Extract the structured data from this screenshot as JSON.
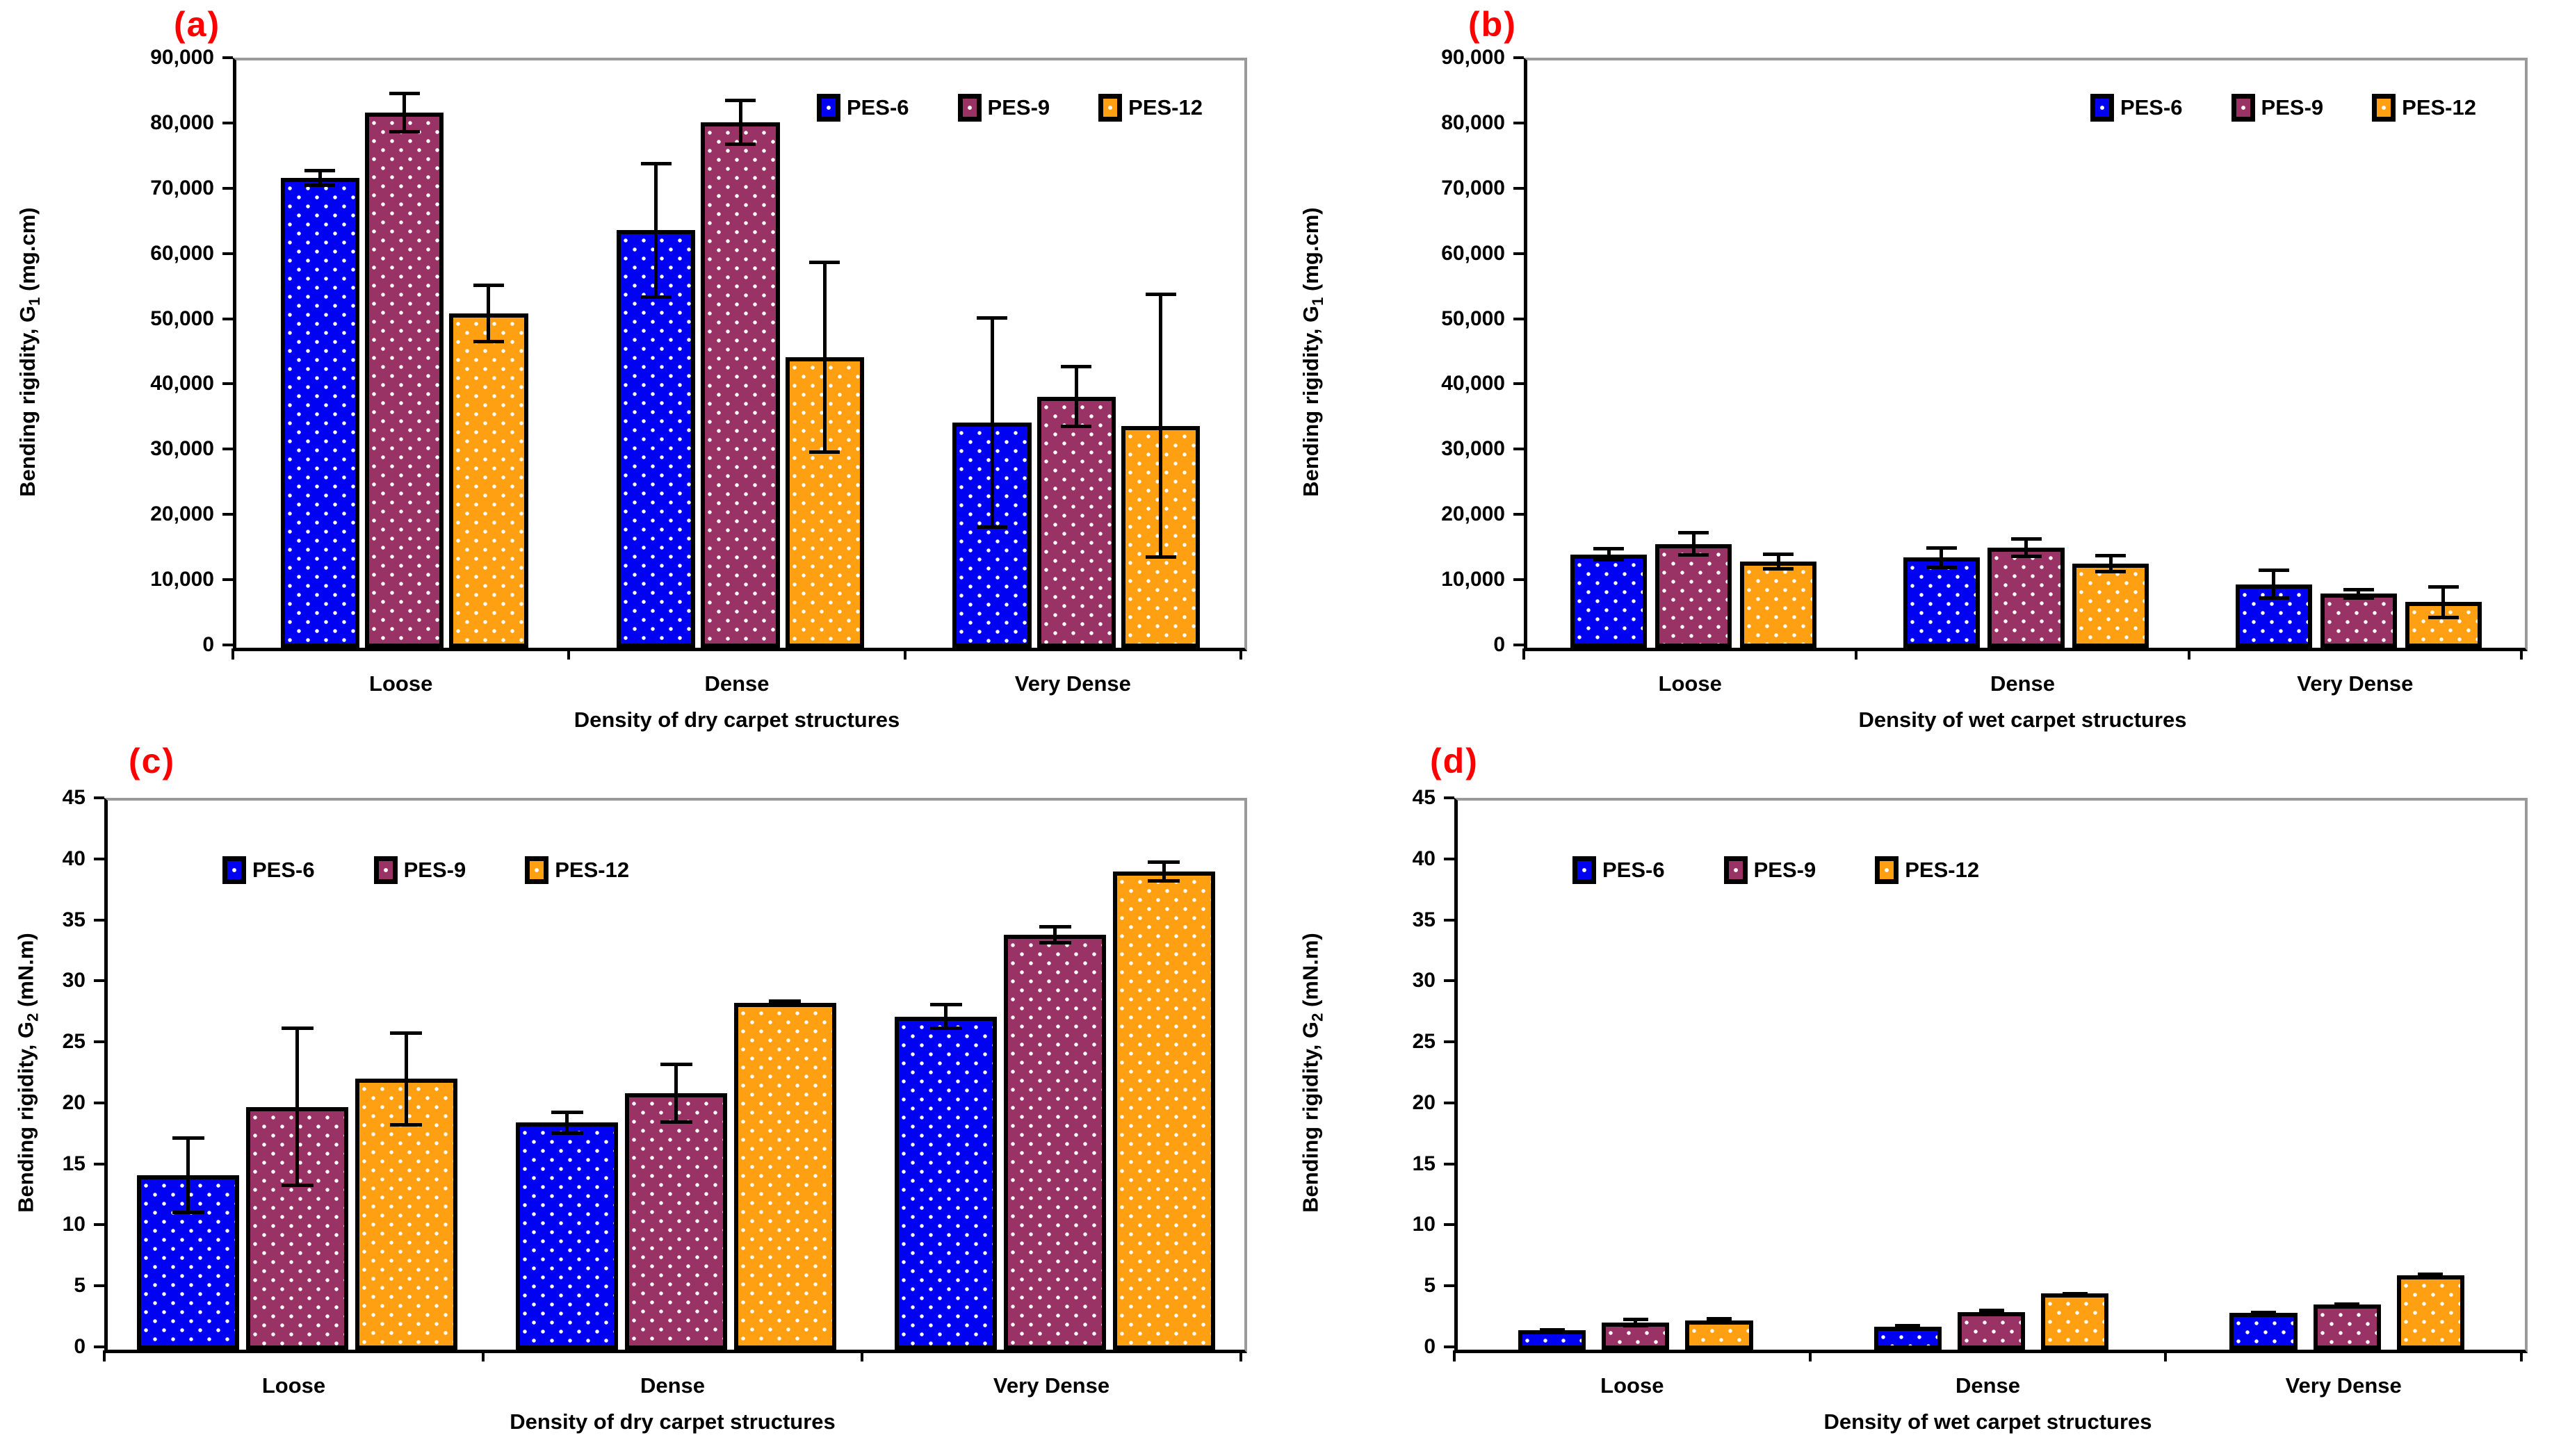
{
  "chart_data": [
    {
      "type": "bar",
      "panel_label": "(a)",
      "title": "",
      "ylabel": "Bending rigidity, G1 (mg.cm)",
      "ylabel_parts": {
        "pre": "Bending rigidity, G",
        "sub": "1",
        "post": " (mg.cm)"
      },
      "xlabel": "Density of dry carpet structures",
      "ylim": [
        0,
        90000
      ],
      "ytick_step": 10000,
      "ytick_labels": [
        "0",
        "10,000",
        "20,000",
        "30,000",
        "40,000",
        "50,000",
        "60,000",
        "70,000",
        "80,000",
        "90,000"
      ],
      "categories": [
        "Loose",
        "Dense",
        "Very Dense"
      ],
      "legend_position": "top-right",
      "grid": false,
      "series": [
        {
          "name": "PES-6",
          "color": "#0202F2",
          "values": [
            72000,
            64000,
            34500
          ],
          "errors": [
            1400,
            10500,
            16300
          ]
        },
        {
          "name": "PES-9",
          "color": "#993366",
          "values": [
            82000,
            80500,
            38500
          ],
          "errors": [
            3200,
            3600,
            4800
          ]
        },
        {
          "name": "PES-12",
          "color": "#FFA013",
          "values": [
            51200,
            44500,
            34000
          ],
          "errors": [
            4600,
            14800,
            20400
          ]
        }
      ]
    },
    {
      "type": "bar",
      "panel_label": "(b)",
      "title": "",
      "ylabel": "Bending rigidity, G1 (mg.cm)",
      "ylabel_parts": {
        "pre": "Bending rigidity, G",
        "sub": "1",
        "post": " (mg.cm)"
      },
      "xlabel": "Density of wet carpet structures",
      "ylim": [
        0,
        90000
      ],
      "ytick_step": 10000,
      "ytick_labels": [
        "0",
        "10,000",
        "20,000",
        "30,000",
        "40,000",
        "50,000",
        "60,000",
        "70,000",
        "80,000",
        "90,000"
      ],
      "categories": [
        "Loose",
        "Dense",
        "Very Dense"
      ],
      "legend_position": "top-right",
      "grid": false,
      "series": [
        {
          "name": "PES-6",
          "color": "#0202F2",
          "values": [
            14300,
            13800,
            9700
          ],
          "errors": [
            1100,
            1800,
            2400
          ]
        },
        {
          "name": "PES-9",
          "color": "#993366",
          "values": [
            15900,
            15300,
            8300
          ],
          "errors": [
            2000,
            1600,
            900
          ]
        },
        {
          "name": "PES-12",
          "color": "#FFA013",
          "values": [
            13200,
            12900,
            7000
          ],
          "errors": [
            1400,
            1500,
            2600
          ]
        }
      ]
    },
    {
      "type": "bar",
      "panel_label": "(c)",
      "title": "",
      "ylabel": "Bending rigidity, G2 (mN.m)",
      "ylabel_parts": {
        "pre": "Bending rigidity, G",
        "sub": "2",
        "post": " (mN.m)"
      },
      "xlabel": "Density of dry carpet structures",
      "ylim": [
        0,
        45
      ],
      "ytick_step": 5,
      "ytick_labels": [
        "0",
        "5",
        "10",
        "15",
        "20",
        "25",
        "30",
        "35",
        "40",
        "45"
      ],
      "categories": [
        "Loose",
        "Dense",
        "Very Dense"
      ],
      "legend_position": "top-left",
      "grid": false,
      "series": [
        {
          "name": "PES-6",
          "color": "#0202F2",
          "values": [
            14.3,
            18.6,
            27.3
          ],
          "errors": [
            3.2,
            1.0,
            1.1
          ]
        },
        {
          "name": "PES-9",
          "color": "#993366",
          "values": [
            19.9,
            21.0,
            34.0
          ],
          "errors": [
            6.6,
            2.5,
            0.8
          ]
        },
        {
          "name": "PES-12",
          "color": "#FFA013",
          "values": [
            22.2,
            28.4,
            39.2
          ],
          "errors": [
            3.9,
            0.3,
            0.9
          ]
        }
      ]
    },
    {
      "type": "bar",
      "panel_label": "(d)",
      "title": "",
      "ylabel": "Bending rigidity, G2 (mN.m)",
      "ylabel_parts": {
        "pre": "Bending rigidity, G",
        "sub": "2",
        "post": " (mN.m)"
      },
      "xlabel": "Density of wet carpet structures",
      "ylim": [
        0,
        45
      ],
      "ytick_step": 5,
      "ytick_labels": [
        "0",
        "5",
        "10",
        "15",
        "20",
        "25",
        "30",
        "35",
        "40",
        "45"
      ],
      "categories": [
        "Loose",
        "Dense",
        "Very Dense"
      ],
      "legend_position": "top-left",
      "grid": false,
      "series": [
        {
          "name": "PES-6",
          "color": "#0202F2",
          "values": [
            1.6,
            1.9,
            3.0
          ],
          "errors": [
            0.15,
            0.2,
            0.1
          ]
        },
        {
          "name": "PES-9",
          "color": "#993366",
          "values": [
            2.2,
            3.1,
            3.7
          ],
          "errors": [
            0.4,
            0.25,
            0.2
          ]
        },
        {
          "name": "PES-12",
          "color": "#FFA013",
          "values": [
            2.4,
            4.6,
            6.1
          ],
          "errors": [
            0.25,
            0.15,
            0.2
          ]
        }
      ]
    }
  ]
}
